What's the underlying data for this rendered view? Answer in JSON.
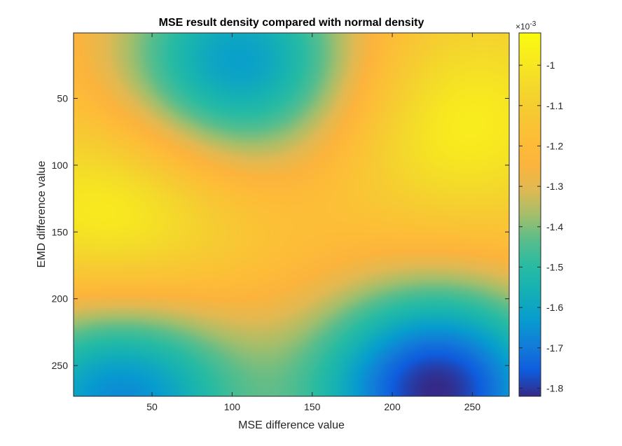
{
  "chart_data": {
    "type": "heatmap",
    "title": "MSE result density compared with normal density",
    "xlabel": "MSE difference value",
    "ylabel": "EMD difference value",
    "xlim": [
      1,
      273
    ],
    "ylim": [
      1,
      273
    ],
    "y_direction": "reverse",
    "xticks": [
      50,
      100,
      150,
      200,
      250
    ],
    "yticks": [
      50,
      100,
      150,
      200,
      250
    ],
    "colormap": "parula",
    "colorbar": {
      "range": [
        -0.00182,
        -0.00092
      ],
      "ticks": [
        -1,
        -1.1,
        -1.2,
        -1.3,
        -1.4,
        -1.5,
        -1.6,
        -1.7,
        -1.8
      ],
      "tick_labels": [
        "-1",
        "-1.1",
        "-1.2",
        "-1.3",
        "-1.4",
        "-1.5",
        "-1.6",
        "-1.7",
        "-1.8"
      ],
      "exponent_label": "×10",
      "exponent": "-3"
    },
    "features": [
      {
        "kind": "max",
        "x": 30,
        "y": 140,
        "value": -0.00093
      },
      {
        "kind": "max",
        "x": 238,
        "y": 68,
        "value": -0.00096
      },
      {
        "kind": "min",
        "x": 105,
        "y": 25,
        "value": -0.00164
      },
      {
        "kind": "min",
        "x": 228,
        "y": 268,
        "value": -0.00182
      },
      {
        "kind": "min",
        "x": 30,
        "y": 272,
        "value": -0.00168
      }
    ],
    "base_value": -0.00116,
    "grid": false
  }
}
